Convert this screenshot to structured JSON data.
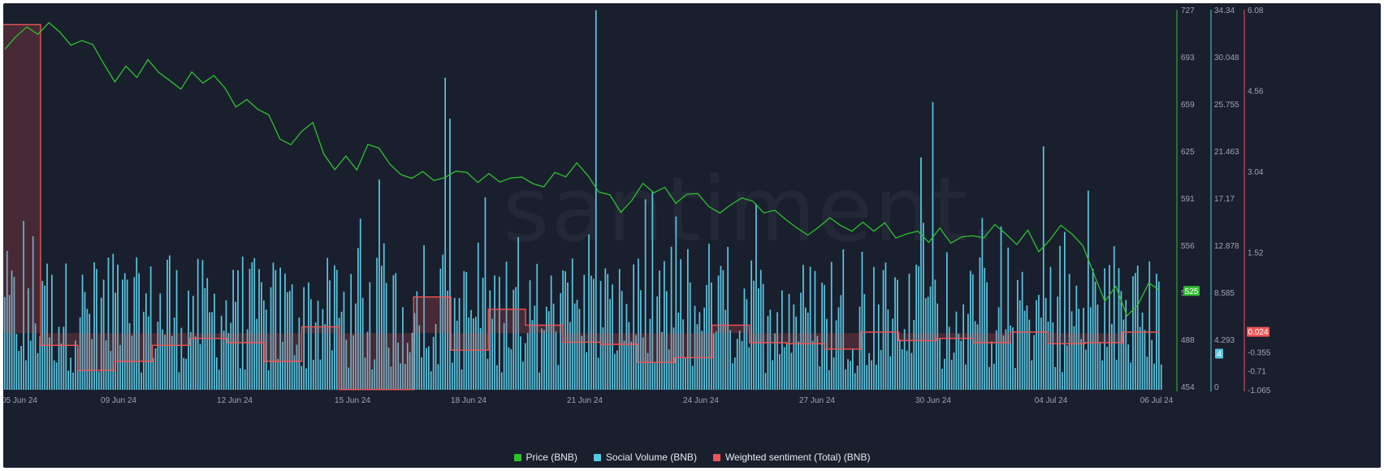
{
  "watermark": "santiment.",
  "legend": [
    {
      "label": "Price (BNB)",
      "color": "#2fc02f"
    },
    {
      "label": "Social Volume (BNB)",
      "color": "#5bc7e0"
    },
    {
      "label": "Weighted sentiment (Total) (BNB)",
      "color": "#ef5555"
    }
  ],
  "chart_data": {
    "type": "line",
    "x_ticks": [
      "05 Jun 24",
      "09 Jun 24",
      "12 Jun 24",
      "15 Jun 24",
      "18 Jun 24",
      "21 Jun 24",
      "24 Jun 24",
      "27 Jun 24",
      "30 Jun 24",
      "04 Jul 24",
      "06 Jul 24"
    ],
    "axes": {
      "price": {
        "ticks": [
          "727",
          "693",
          "659",
          "625",
          "591",
          "556",
          "522",
          "488",
          "454"
        ],
        "range": [
          454,
          727
        ],
        "color": "#2fc02f",
        "current_label": "525"
      },
      "social_volume": {
        "ticks": [
          "34.34",
          "30.048",
          "25.755",
          "21.463",
          "17.17",
          "12.878",
          "8.585",
          "4.293",
          "0"
        ],
        "range": [
          0,
          34.34
        ],
        "color": "#5bc7e0",
        "current_label": "4"
      },
      "sentiment": {
        "ticks": [
          "6.08",
          "4.56",
          "3.04",
          "1.52",
          "0",
          "-0.355",
          "-0.71",
          "-1.065"
        ],
        "range": [
          -1.065,
          6.08
        ],
        "color": "#ef5555",
        "current_label": "0.024"
      }
    },
    "series": [
      {
        "name": "Price (BNB)",
        "x_start": "05 Jun 24",
        "x_end": "06 Jul 24",
        "values": [
          698,
          707,
          714,
          709,
          718,
          712,
          701,
          706,
          703,
          689,
          675,
          686,
          679,
          691,
          682,
          677,
          670,
          683,
          674,
          679,
          670,
          657,
          663,
          655,
          652,
          635,
          629,
          640,
          646,
          624,
          613,
          622,
          611,
          630,
          627,
          616,
          609,
          607,
          611,
          604,
          606,
          611,
          610,
          604,
          610,
          603,
          606,
          606,
          602,
          599,
          611,
          608,
          616,
          608,
          597,
          595,
          581,
          591,
          603,
          596,
          599,
          587,
          594,
          596,
          585,
          580,
          587,
          591,
          589,
          582,
          583,
          577,
          570,
          564,
          571,
          577,
          573,
          569,
          575,
          568,
          573,
          562,
          565,
          567,
          559,
          570,
          560,
          563,
          565,
          562,
          573,
          567,
          559,
          569,
          552,
          561,
          572,
          567,
          558,
          538,
          517,
          528,
          506,
          515,
          531,
          525
        ]
      },
      {
        "name": "Social Volume (BNB)",
        "note": "hourly bars, ~12 median with spikes",
        "peaks": [
          {
            "x": "21 Jun 24",
            "value": 34.3
          },
          {
            "x": "17 Jun 24",
            "value": 28.2
          },
          {
            "x": "30 Jun 24",
            "value": 26.0
          },
          {
            "x": "04 Jul 24",
            "value": 22.0
          }
        ]
      },
      {
        "name": "Weighted sentiment (Total) (BNB)",
        "step_values": [
          5.8,
          -0.23,
          -0.7,
          -0.53,
          -0.23,
          -0.1,
          -0.18,
          -0.53,
          0.12,
          -1.06,
          -1.06,
          0.68,
          -0.32,
          0.45,
          0.15,
          -0.17,
          -0.21,
          -0.55,
          -0.46,
          0.15,
          -0.18,
          -0.2,
          -0.3,
          0.02,
          -0.14,
          -0.1,
          -0.18,
          0.02,
          -0.2,
          -0.18,
          0.02
        ]
      }
    ]
  }
}
